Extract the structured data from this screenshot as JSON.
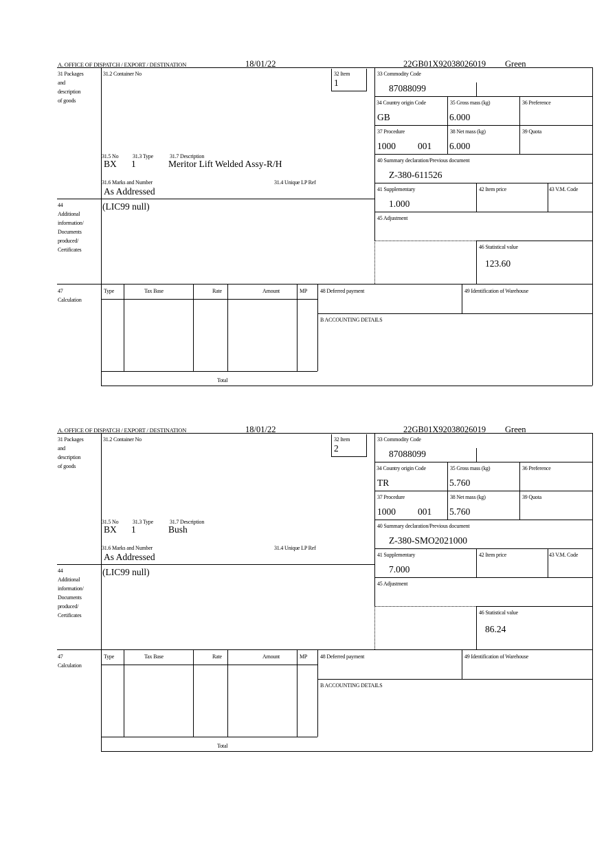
{
  "labels": {
    "office": "A.  OFFICE OF DISPATCH / EXPORT / DESTINATION",
    "box31": [
      "31 Packages",
      "and",
      "description",
      "of goods"
    ],
    "container_no": "31.2 Container No",
    "item": "32 Item",
    "no": "31.5 No",
    "type": "31.3 Type",
    "description": "31.7 Description",
    "marks": "31.6 Marks and Number",
    "unique_lp": "31.4 Unique LP Ref",
    "box44": [
      "44",
      "Additional",
      "information/",
      "Documents",
      "produced/",
      "Certificates"
    ],
    "box47": [
      "47",
      "Calculation"
    ],
    "commodity": "33 Commodity Code",
    "country": "34 Country origin Code",
    "gross": "35 Gross mass (kg)",
    "preference": "36 Preference",
    "procedure": "37 Procedure",
    "net": "38 Net mass (kg)",
    "quota": "39 Quota",
    "summary": "40 Summary declaration/Previous document",
    "supplementary": "41 Supplementary",
    "item_price": "42 Item price",
    "vm_code": "43 V.M. Code",
    "adjustment": "45 Adjustment",
    "stat_value": "46 Statistical value",
    "calc_cols": [
      "Type",
      "Tax Base",
      "Rate",
      "Amount",
      "MP"
    ],
    "total": "Total",
    "deferred": "48 Deferred payment",
    "warehouse": "49 Identification of Warehouse",
    "accounting": "B ACCOUNTING DETAILS"
  },
  "forms": [
    {
      "date": "18/01/22",
      "reference": "22GB01X92038026019",
      "route": "Green",
      "item": "1",
      "pkg_kind": "BX",
      "pkg_count": "1",
      "description": "Meritor Lift Welded Assy-R/H",
      "marks": "As Addressed",
      "additional": "(LIC99 null)",
      "commodity": "87088099",
      "country": "GB",
      "gross": "6.000",
      "procedure": "1000",
      "procedure_add": "001",
      "net": "6.000",
      "summary": "Z-380-611526",
      "supplementary": "1.000",
      "stat_value": "123.60"
    },
    {
      "date": "18/01/22",
      "reference": "22GB01X92038026019",
      "route": "Green",
      "item": "2",
      "pkg_kind": "BX",
      "pkg_count": "1",
      "description": "Bush",
      "marks": "As Addressed",
      "additional": "(LIC99 null)",
      "commodity": "87088099",
      "country": "TR",
      "gross": "5.760",
      "procedure": "1000",
      "procedure_add": "001",
      "net": "5.760",
      "summary": "Z-380-SMO2021000",
      "supplementary": "7.000",
      "stat_value": "86.24"
    }
  ]
}
